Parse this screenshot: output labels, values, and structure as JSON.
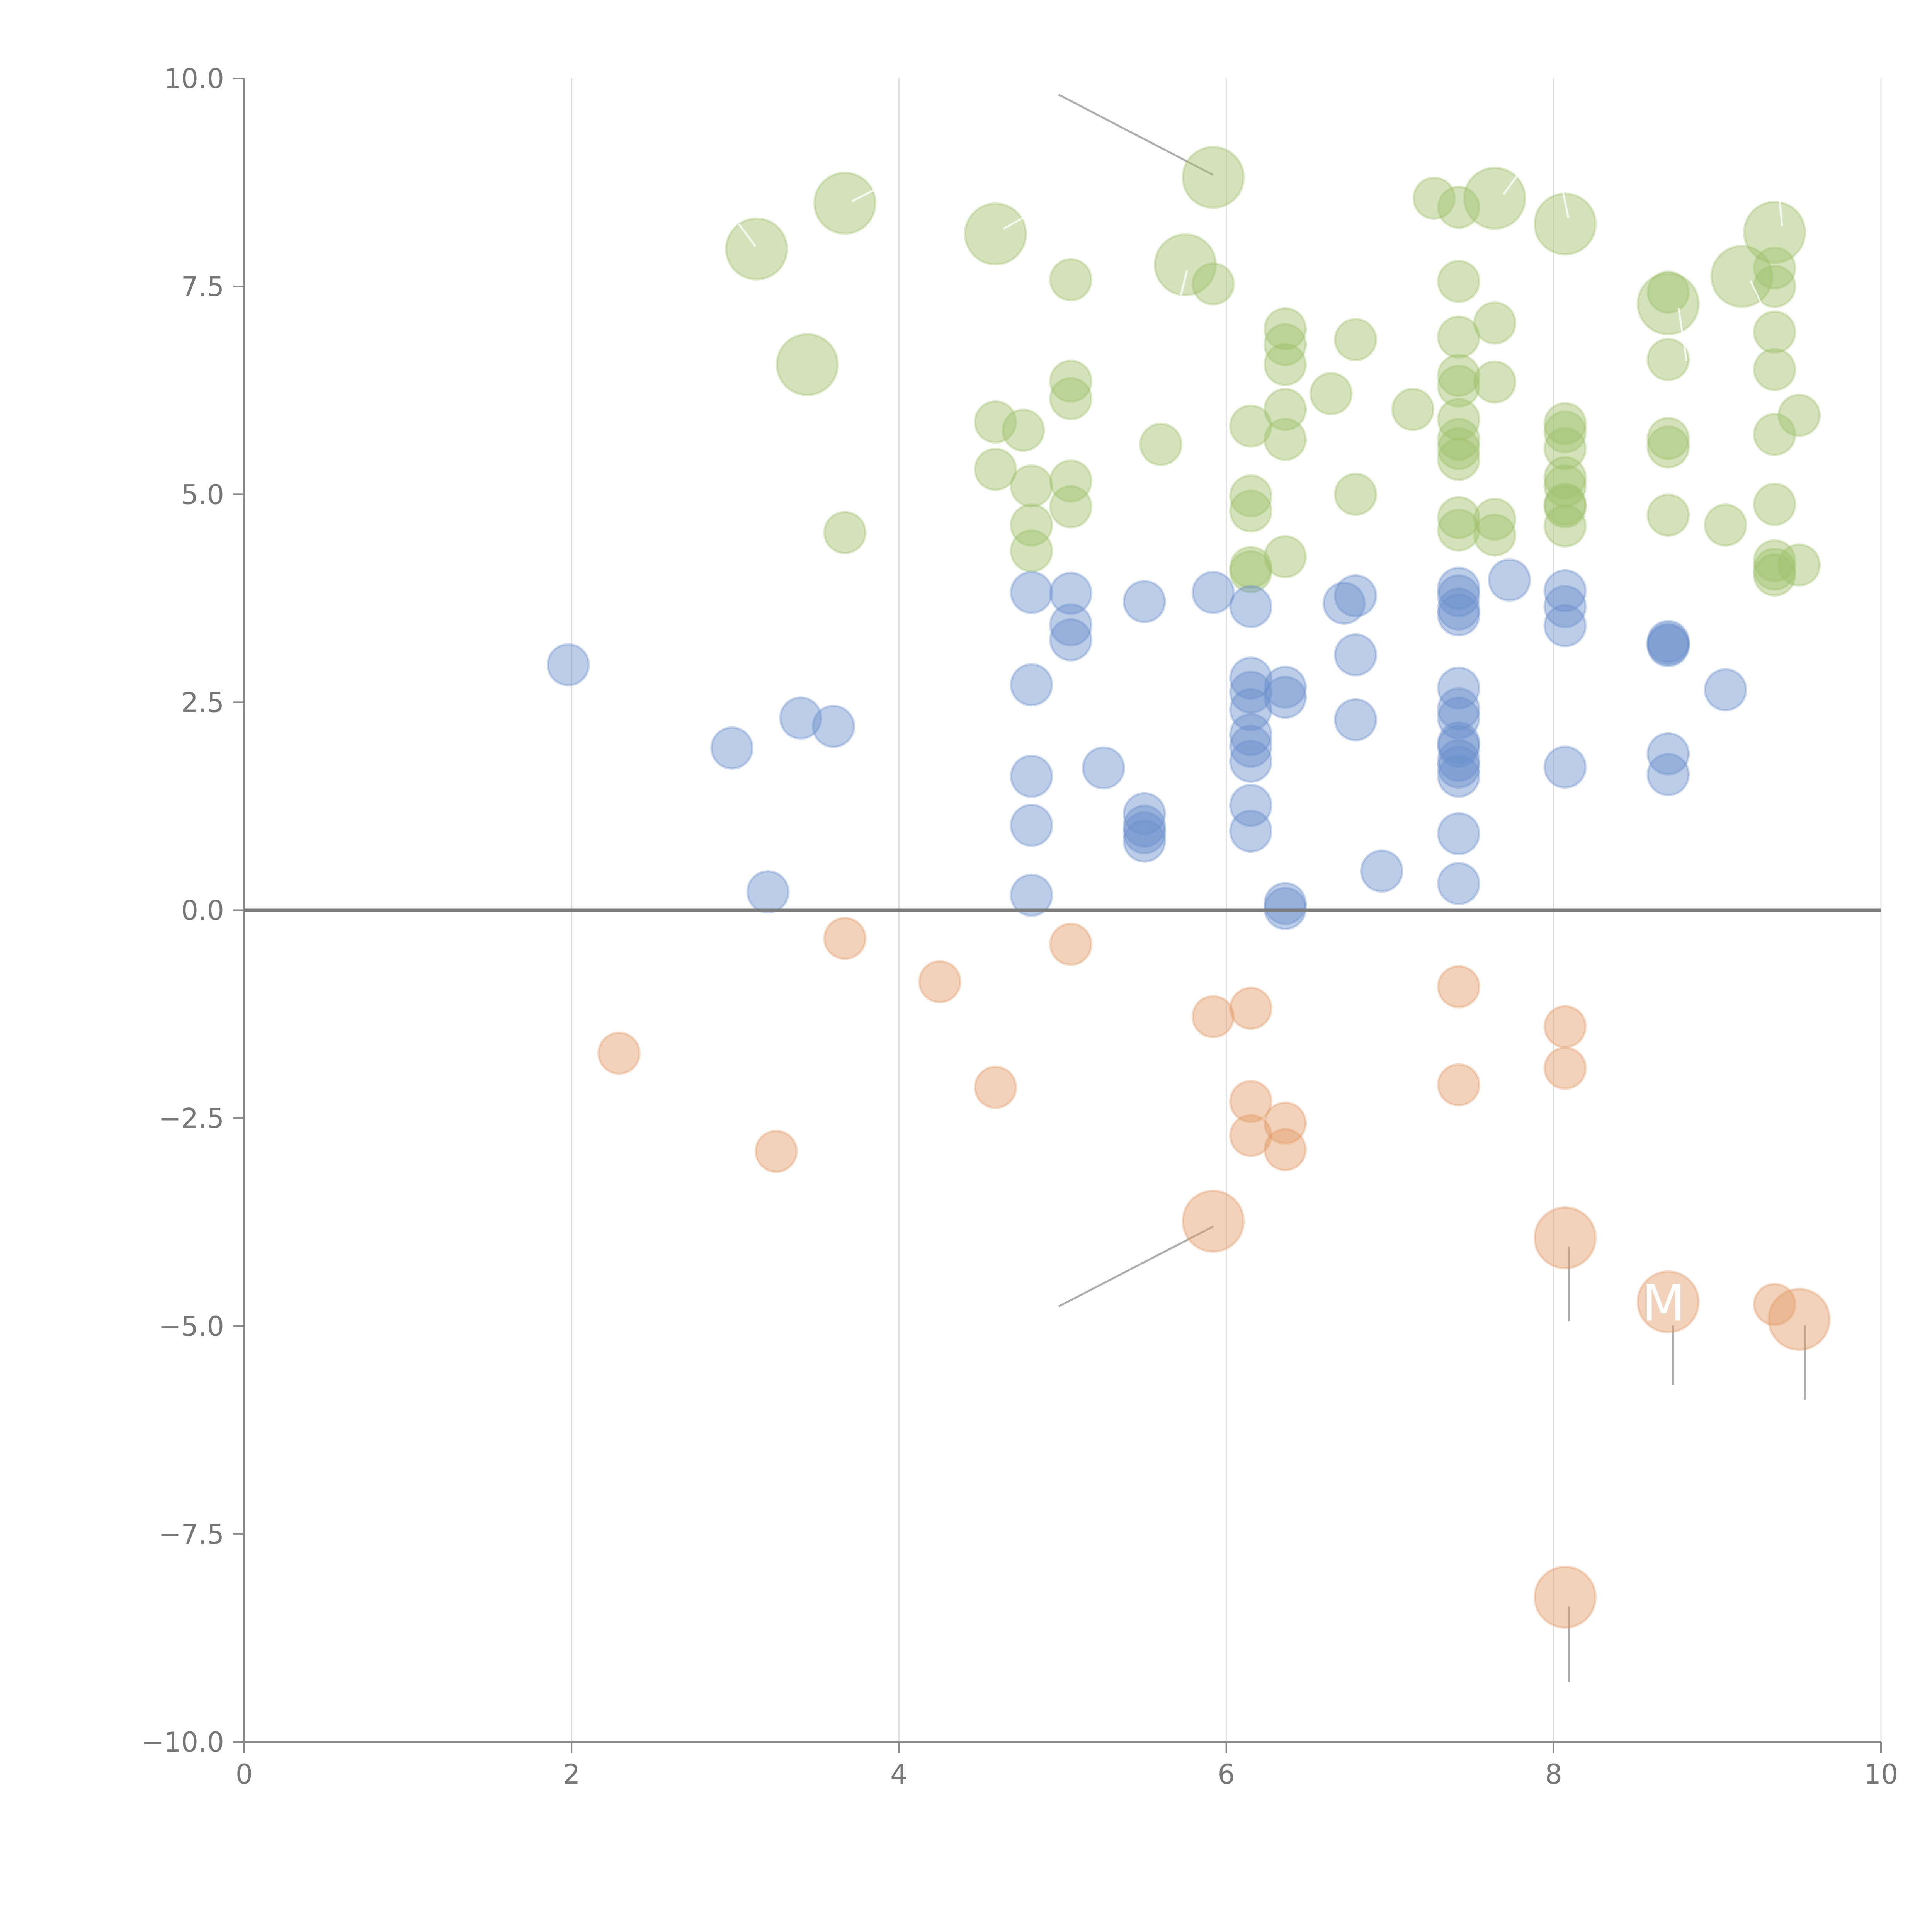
{
  "chart_data": {
    "type": "scatter",
    "title": "",
    "xlabel": "",
    "ylabel": "",
    "xlim": [
      0,
      10
    ],
    "ylim": [
      -10,
      10
    ],
    "grid": "vertical",
    "x_ticks": [
      "0",
      "2",
      "4",
      "6",
      "8",
      "10"
    ],
    "y_ticks": [
      "10.0",
      "7.5",
      "5.0",
      "2.5",
      "0.0",
      "−2.5",
      "−5.0",
      "−7.5",
      "−10.0"
    ],
    "colors": {
      "positive": "#9fc06b",
      "neutral": "#6b90cb",
      "negative": "#e39c66"
    },
    "series": [
      {
        "name": "positive",
        "color": "#9fc06b",
        "points": [
          {
            "x": 3.13,
            "y": 7.95,
            "s": 2.2
          },
          {
            "x": 3.67,
            "y": 8.5,
            "s": 2.2
          },
          {
            "x": 3.44,
            "y": 6.56,
            "s": 2.2
          },
          {
            "x": 4.59,
            "y": 8.13,
            "s": 2.2
          },
          {
            "x": 5.92,
            "y": 8.81,
            "s": 2.2
          },
          {
            "x": 5.75,
            "y": 7.76,
            "s": 2.2
          },
          {
            "x": 7.64,
            "y": 8.56,
            "s": 2.2
          },
          {
            "x": 8.07,
            "y": 8.25,
            "s": 2.2
          },
          {
            "x": 8.7,
            "y": 7.29,
            "s": 2.2
          },
          {
            "x": 9.15,
            "y": 7.62,
            "s": 2.2
          },
          {
            "x": 9.35,
            "y": 8.15,
            "s": 2.2
          },
          {
            "x": 3.67,
            "y": 4.54,
            "s": 1
          },
          {
            "x": 4.59,
            "y": 5.87,
            "s": 1
          },
          {
            "x": 4.59,
            "y": 5.3,
            "s": 1
          },
          {
            "x": 4.76,
            "y": 5.77,
            "s": 1
          },
          {
            "x": 4.81,
            "y": 5.1,
            "s": 1
          },
          {
            "x": 4.81,
            "y": 4.63,
            "s": 1
          },
          {
            "x": 4.81,
            "y": 4.32,
            "s": 1
          },
          {
            "x": 5.05,
            "y": 7.58,
            "s": 1
          },
          {
            "x": 5.05,
            "y": 6.36,
            "s": 1
          },
          {
            "x": 5.05,
            "y": 6.15,
            "s": 1
          },
          {
            "x": 5.05,
            "y": 5.16,
            "s": 1
          },
          {
            "x": 5.05,
            "y": 4.85,
            "s": 1
          },
          {
            "x": 5.6,
            "y": 5.6,
            "s": 1
          },
          {
            "x": 5.92,
            "y": 7.53,
            "s": 1
          },
          {
            "x": 6.15,
            "y": 5.82,
            "s": 1
          },
          {
            "x": 6.15,
            "y": 4.98,
            "s": 1
          },
          {
            "x": 6.15,
            "y": 4.8,
            "s": 1
          },
          {
            "x": 6.15,
            "y": 4.12,
            "s": 1
          },
          {
            "x": 6.15,
            "y": 4.07,
            "s": 1
          },
          {
            "x": 6.36,
            "y": 6.99,
            "s": 1
          },
          {
            "x": 6.36,
            "y": 6.8,
            "s": 1
          },
          {
            "x": 6.36,
            "y": 6.56,
            "s": 1
          },
          {
            "x": 6.36,
            "y": 6.02,
            "s": 1
          },
          {
            "x": 6.36,
            "y": 5.66,
            "s": 1
          },
          {
            "x": 6.36,
            "y": 4.25,
            "s": 1
          },
          {
            "x": 6.64,
            "y": 6.21,
            "s": 1
          },
          {
            "x": 6.79,
            "y": 6.86,
            "s": 1
          },
          {
            "x": 6.79,
            "y": 5.0,
            "s": 1
          },
          {
            "x": 7.14,
            "y": 6.02,
            "s": 1
          },
          {
            "x": 7.27,
            "y": 8.56,
            "s": 1
          },
          {
            "x": 7.42,
            "y": 8.45,
            "s": 1
          },
          {
            "x": 7.42,
            "y": 7.56,
            "s": 1
          },
          {
            "x": 7.42,
            "y": 6.89,
            "s": 1
          },
          {
            "x": 7.42,
            "y": 6.43,
            "s": 1
          },
          {
            "x": 7.42,
            "y": 6.3,
            "s": 1
          },
          {
            "x": 7.42,
            "y": 5.9,
            "s": 1
          },
          {
            "x": 7.42,
            "y": 5.66,
            "s": 1
          },
          {
            "x": 7.42,
            "y": 5.55,
            "s": 1
          },
          {
            "x": 7.42,
            "y": 5.42,
            "s": 1
          },
          {
            "x": 7.42,
            "y": 4.72,
            "s": 1
          },
          {
            "x": 7.42,
            "y": 4.57,
            "s": 1
          },
          {
            "x": 7.64,
            "y": 7.06,
            "s": 1
          },
          {
            "x": 7.64,
            "y": 6.35,
            "s": 1
          },
          {
            "x": 7.64,
            "y": 4.7,
            "s": 1
          },
          {
            "x": 7.64,
            "y": 4.51,
            "s": 1
          },
          {
            "x": 8.07,
            "y": 5.85,
            "s": 1
          },
          {
            "x": 8.07,
            "y": 5.75,
            "s": 1
          },
          {
            "x": 8.07,
            "y": 5.55,
            "s": 1
          },
          {
            "x": 8.07,
            "y": 5.2,
            "s": 1
          },
          {
            "x": 8.07,
            "y": 5.1,
            "s": 1
          },
          {
            "x": 8.07,
            "y": 4.88,
            "s": 1
          },
          {
            "x": 8.07,
            "y": 4.85,
            "s": 1
          },
          {
            "x": 8.07,
            "y": 4.62,
            "s": 1
          },
          {
            "x": 8.7,
            "y": 7.43,
            "s": 1
          },
          {
            "x": 8.7,
            "y": 6.62,
            "s": 1
          },
          {
            "x": 8.7,
            "y": 5.67,
            "s": 1
          },
          {
            "x": 8.7,
            "y": 5.57,
            "s": 1
          },
          {
            "x": 8.7,
            "y": 4.75,
            "s": 1
          },
          {
            "x": 9.05,
            "y": 4.63,
            "s": 1
          },
          {
            "x": 9.35,
            "y": 7.72,
            "s": 1
          },
          {
            "x": 9.35,
            "y": 7.5,
            "s": 1
          },
          {
            "x": 9.35,
            "y": 6.95,
            "s": 1
          },
          {
            "x": 9.35,
            "y": 6.5,
            "s": 1
          },
          {
            "x": 9.35,
            "y": 5.72,
            "s": 1
          },
          {
            "x": 9.35,
            "y": 4.88,
            "s": 1
          },
          {
            "x": 9.35,
            "y": 4.2,
            "s": 1
          },
          {
            "x": 9.35,
            "y": 4.1,
            "s": 1
          },
          {
            "x": 9.35,
            "y": 4.03,
            "s": 1
          },
          {
            "x": 9.5,
            "y": 5.95,
            "s": 1
          },
          {
            "x": 9.5,
            "y": 4.15,
            "s": 1
          }
        ]
      },
      {
        "name": "neutral",
        "color": "#6b90cb",
        "points": [
          {
            "x": 1.98,
            "y": 2.95,
            "s": 1
          },
          {
            "x": 2.98,
            "y": 1.95,
            "s": 1
          },
          {
            "x": 3.2,
            "y": 0.22,
            "s": 1
          },
          {
            "x": 3.4,
            "y": 2.31,
            "s": 1
          },
          {
            "x": 3.6,
            "y": 2.21,
            "s": 1
          },
          {
            "x": 4.81,
            "y": 3.82,
            "s": 1
          },
          {
            "x": 4.81,
            "y": 2.71,
            "s": 1
          },
          {
            "x": 4.81,
            "y": 1.61,
            "s": 1
          },
          {
            "x": 4.81,
            "y": 1.02,
            "s": 1
          },
          {
            "x": 4.81,
            "y": 0.18,
            "s": 1
          },
          {
            "x": 5.05,
            "y": 3.81,
            "s": 1
          },
          {
            "x": 5.05,
            "y": 3.43,
            "s": 1
          },
          {
            "x": 5.05,
            "y": 3.25,
            "s": 1
          },
          {
            "x": 5.25,
            "y": 1.71,
            "s": 1
          },
          {
            "x": 5.5,
            "y": 3.71,
            "s": 1
          },
          {
            "x": 5.5,
            "y": 1.16,
            "s": 1
          },
          {
            "x": 5.5,
            "y": 1.01,
            "s": 1
          },
          {
            "x": 5.5,
            "y": 0.93,
            "s": 1
          },
          {
            "x": 5.5,
            "y": 0.83,
            "s": 1
          },
          {
            "x": 5.92,
            "y": 3.82,
            "s": 1
          },
          {
            "x": 6.15,
            "y": 3.65,
            "s": 1
          },
          {
            "x": 6.15,
            "y": 2.79,
            "s": 1
          },
          {
            "x": 6.15,
            "y": 2.62,
            "s": 1
          },
          {
            "x": 6.15,
            "y": 2.41,
            "s": 1
          },
          {
            "x": 6.15,
            "y": 2.11,
            "s": 1
          },
          {
            "x": 6.15,
            "y": 1.97,
            "s": 1
          },
          {
            "x": 6.15,
            "y": 1.79,
            "s": 1
          },
          {
            "x": 6.15,
            "y": 1.26,
            "s": 1
          },
          {
            "x": 6.15,
            "y": 0.95,
            "s": 1
          },
          {
            "x": 6.36,
            "y": 2.68,
            "s": 1
          },
          {
            "x": 6.36,
            "y": 2.56,
            "s": 1
          },
          {
            "x": 6.36,
            "y": 0.08,
            "s": 1
          },
          {
            "x": 6.36,
            "y": 0.02,
            "s": 1
          },
          {
            "x": 6.72,
            "y": 3.69,
            "s": 1
          },
          {
            "x": 6.79,
            "y": 3.78,
            "s": 1
          },
          {
            "x": 6.79,
            "y": 3.07,
            "s": 1
          },
          {
            "x": 6.79,
            "y": 2.29,
            "s": 1
          },
          {
            "x": 6.95,
            "y": 0.47,
            "s": 1
          },
          {
            "x": 7.42,
            "y": 3.87,
            "s": 1
          },
          {
            "x": 7.42,
            "y": 3.78,
            "s": 1
          },
          {
            "x": 7.42,
            "y": 3.62,
            "s": 1
          },
          {
            "x": 7.42,
            "y": 3.55,
            "s": 1
          },
          {
            "x": 7.42,
            "y": 2.67,
            "s": 1
          },
          {
            "x": 7.42,
            "y": 2.42,
            "s": 1
          },
          {
            "x": 7.42,
            "y": 2.31,
            "s": 1
          },
          {
            "x": 7.42,
            "y": 2.01,
            "s": 1
          },
          {
            "x": 7.42,
            "y": 1.97,
            "s": 1
          },
          {
            "x": 7.42,
            "y": 1.8,
            "s": 1
          },
          {
            "x": 7.42,
            "y": 1.72,
            "s": 1
          },
          {
            "x": 7.42,
            "y": 1.61,
            "s": 1
          },
          {
            "x": 7.42,
            "y": 0.92,
            "s": 1
          },
          {
            "x": 7.42,
            "y": 0.32,
            "s": 1
          },
          {
            "x": 7.73,
            "y": 3.97,
            "s": 1
          },
          {
            "x": 8.07,
            "y": 3.84,
            "s": 1
          },
          {
            "x": 8.07,
            "y": 3.65,
            "s": 1
          },
          {
            "x": 8.07,
            "y": 3.42,
            "s": 1
          },
          {
            "x": 8.07,
            "y": 1.72,
            "s": 1
          },
          {
            "x": 8.7,
            "y": 3.23,
            "s": 1
          },
          {
            "x": 8.7,
            "y": 3.2,
            "s": 1
          },
          {
            "x": 8.7,
            "y": 3.18,
            "s": 1
          },
          {
            "x": 8.7,
            "y": 1.88,
            "s": 1
          },
          {
            "x": 8.7,
            "y": 1.63,
            "s": 1
          },
          {
            "x": 9.05,
            "y": 2.65,
            "s": 1
          }
        ]
      },
      {
        "name": "negative",
        "color": "#e39c66",
        "points": [
          {
            "x": 2.29,
            "y": -1.72,
            "s": 1
          },
          {
            "x": 3.25,
            "y": -2.9,
            "s": 1
          },
          {
            "x": 3.67,
            "y": -0.34,
            "s": 1
          },
          {
            "x": 4.25,
            "y": -0.86,
            "s": 1
          },
          {
            "x": 4.59,
            "y": -2.13,
            "s": 1
          },
          {
            "x": 5.05,
            "y": -0.41,
            "s": 1
          },
          {
            "x": 5.92,
            "y": -1.28,
            "s": 1
          },
          {
            "x": 6.15,
            "y": -1.18,
            "s": 1
          },
          {
            "x": 6.15,
            "y": -2.3,
            "s": 1
          },
          {
            "x": 6.15,
            "y": -2.71,
            "s": 1
          },
          {
            "x": 6.36,
            "y": -2.56,
            "s": 1
          },
          {
            "x": 6.36,
            "y": -2.88,
            "s": 1
          },
          {
            "x": 7.42,
            "y": -0.92,
            "s": 1
          },
          {
            "x": 7.42,
            "y": -2.1,
            "s": 1
          },
          {
            "x": 8.07,
            "y": -1.4,
            "s": 1
          },
          {
            "x": 8.07,
            "y": -1.9,
            "s": 1
          },
          {
            "x": 9.35,
            "y": -4.74,
            "s": 1
          },
          {
            "x": 5.92,
            "y": -3.74,
            "s": 2.2
          },
          {
            "x": 8.07,
            "y": -3.94,
            "s": 2.2
          },
          {
            "x": 8.7,
            "y": -4.71,
            "s": 2.2
          },
          {
            "x": 9.5,
            "y": -4.92,
            "s": 2.2
          },
          {
            "x": 8.07,
            "y": -8.26,
            "s": 2.2
          }
        ]
      }
    ],
    "annotations": [
      {
        "text": "M",
        "x": 8.7,
        "y": -4.71
      }
    ]
  }
}
